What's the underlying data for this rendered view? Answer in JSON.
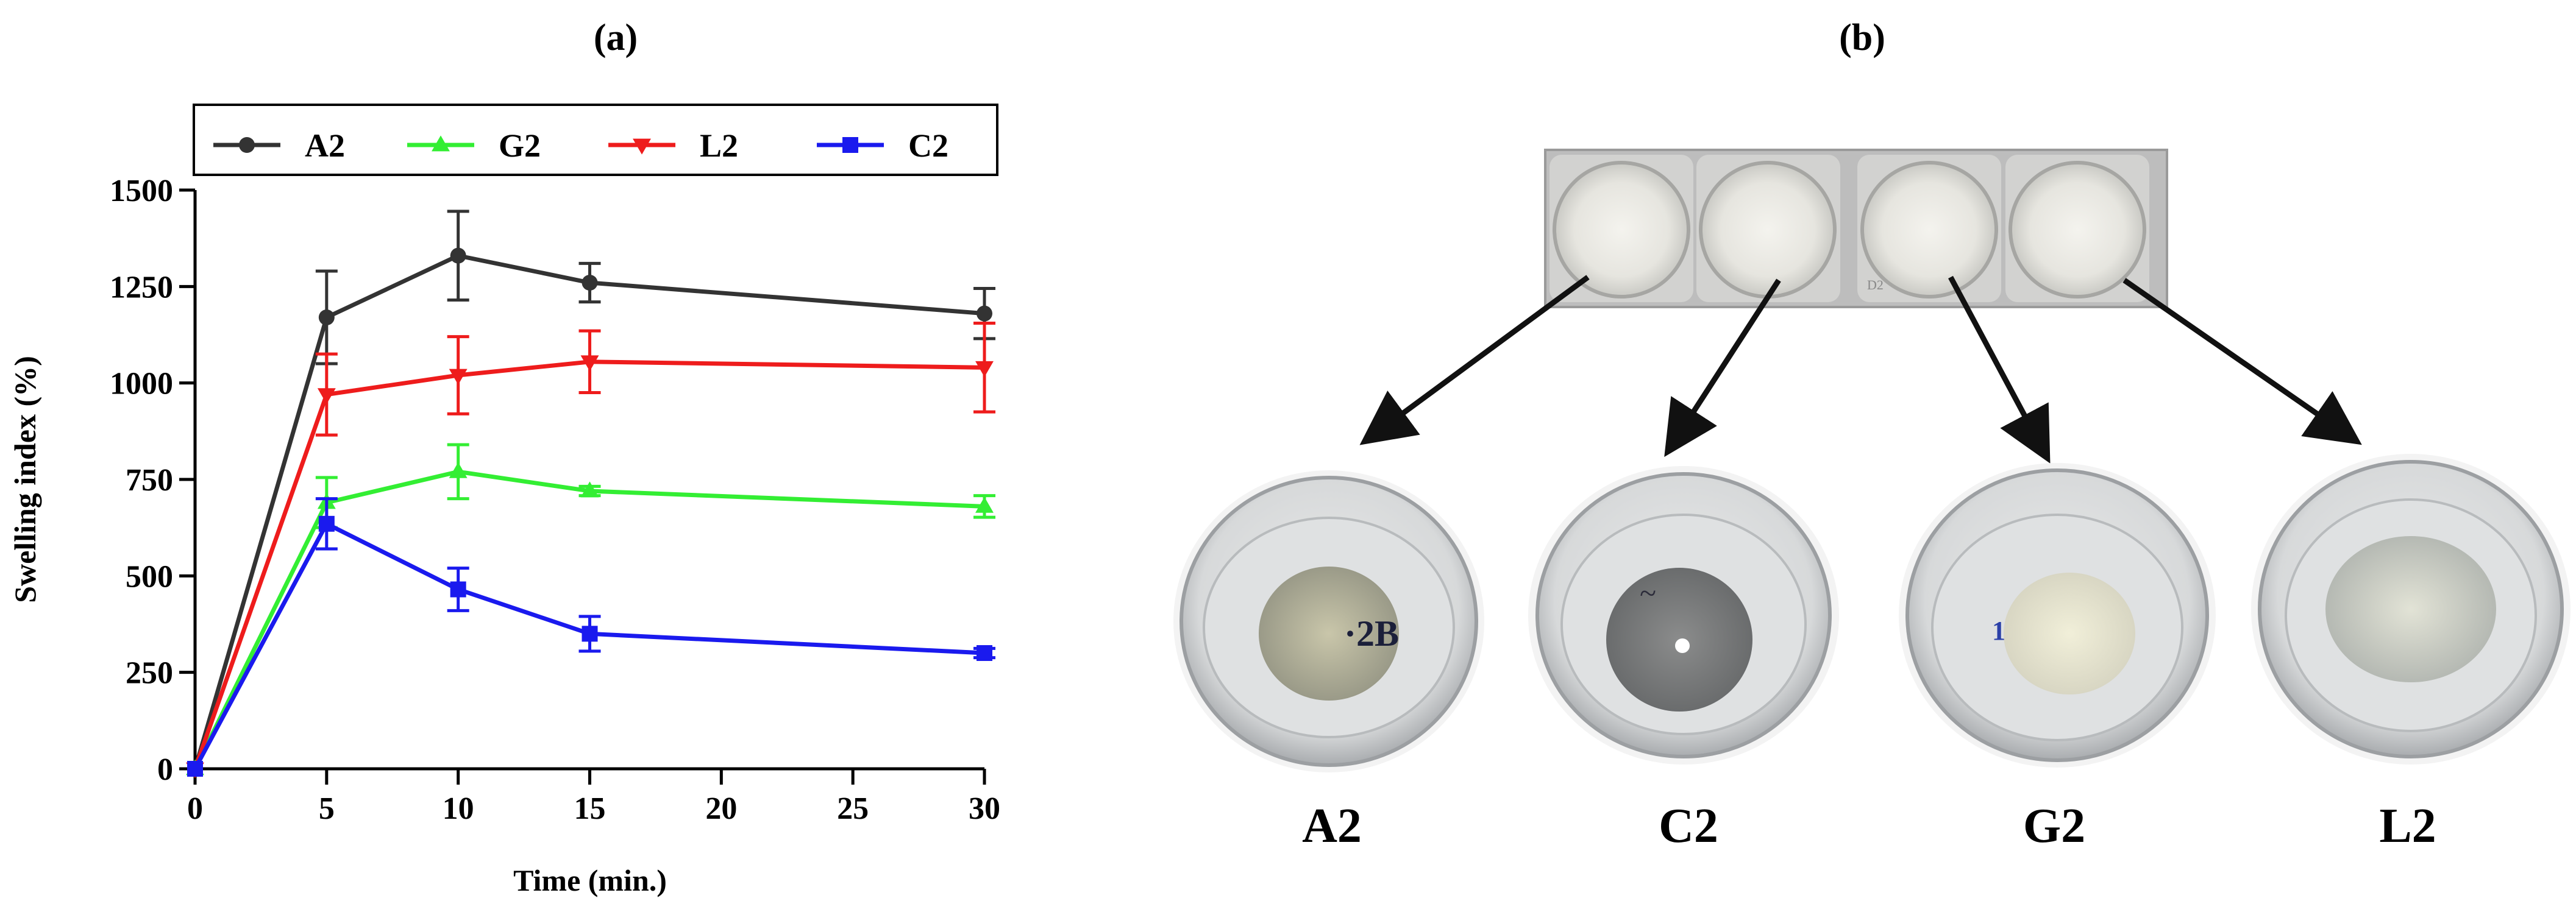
{
  "panels": {
    "a_label": "(a)",
    "b_label": "(b)"
  },
  "chart_data": {
    "type": "line",
    "title": "",
    "xlabel": "Time (min.)",
    "ylabel": "Swelling index (%)",
    "xlim": [
      0,
      30
    ],
    "ylim": [
      0,
      1500
    ],
    "xticks": [
      0,
      5,
      10,
      15,
      20,
      25,
      30
    ],
    "yticks": [
      0,
      250,
      500,
      750,
      1000,
      1250,
      1500
    ],
    "legend_position": "top",
    "grid": false,
    "x": [
      0,
      5,
      10,
      15,
      30
    ],
    "series": [
      {
        "name": "A2",
        "color": "#333333",
        "marker": "circle",
        "values": [
          0,
          1170,
          1330,
          1260,
          1180
        ],
        "errors": [
          0,
          120,
          115,
          50,
          65
        ]
      },
      {
        "name": "G2",
        "color": "#33ee33",
        "marker": "triangle-up",
        "values": [
          0,
          690,
          770,
          720,
          680
        ],
        "errors": [
          0,
          65,
          70,
          12,
          28
        ]
      },
      {
        "name": "L2",
        "color": "#ee1c1c",
        "marker": "triangle-down",
        "values": [
          0,
          970,
          1020,
          1055,
          1040
        ],
        "errors": [
          0,
          105,
          100,
          80,
          115
        ]
      },
      {
        "name": "C2",
        "color": "#1a1aee",
        "marker": "square",
        "values": [
          0,
          635,
          465,
          350,
          300
        ],
        "errors": [
          0,
          65,
          55,
          45,
          12
        ]
      }
    ]
  },
  "photo_panel": {
    "dish_labels": [
      "A2",
      "C2",
      "G2",
      "L2"
    ],
    "top_strip_mark": "D2",
    "dish_markings": {
      "a2": "·2B",
      "c2": "~",
      "g2": "1"
    }
  }
}
